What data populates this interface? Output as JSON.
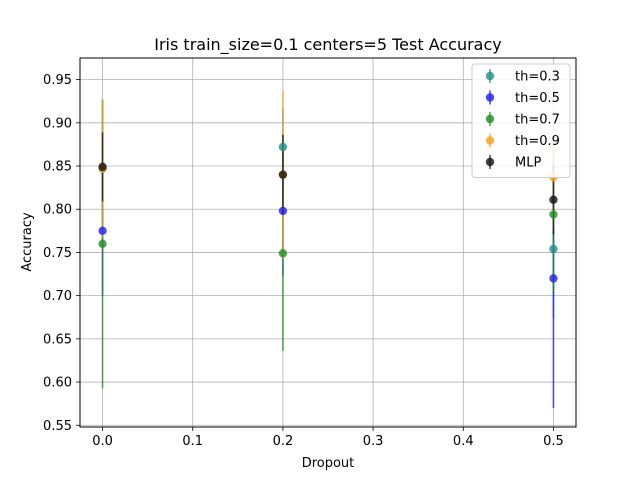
{
  "chart_data": {
    "type": "scatter",
    "title": "Iris train_size=0.1 centers=5 Test Accuracy",
    "xlabel": "Dropout",
    "ylabel": "Accuracy",
    "xlim": [
      -0.025,
      0.525
    ],
    "ylim": [
      0.548,
      0.975
    ],
    "xticks": [
      0.0,
      0.1,
      0.2,
      0.3,
      0.4,
      0.5
    ],
    "xtick_labels": [
      "0.0",
      "0.1",
      "0.2",
      "0.3",
      "0.4",
      "0.5"
    ],
    "yticks": [
      0.55,
      0.6,
      0.65,
      0.7,
      0.75,
      0.8,
      0.85,
      0.9,
      0.95
    ],
    "ytick_labels": [
      "0.55",
      "0.60",
      "0.65",
      "0.70",
      "0.75",
      "0.80",
      "0.85",
      "0.90",
      "0.95"
    ],
    "grid": true,
    "legend_position": "top-right",
    "x": [
      0.0,
      0.2,
      0.5
    ],
    "series": [
      {
        "name": "th=0.3",
        "color": "#1f8f8a",
        "values": [
          0.847,
          0.872,
          0.754
        ],
        "err": [
          0.08,
          0.045,
          0.08
        ]
      },
      {
        "name": "th=0.5",
        "color": "#1f1ff0",
        "values": [
          0.775,
          0.798,
          0.72
        ],
        "err": [
          0.075,
          0.075,
          0.15
        ]
      },
      {
        "name": "th=0.7",
        "color": "#1f8f1f",
        "values": [
          0.76,
          0.749,
          0.794
        ],
        "err": [
          0.167,
          0.113,
          0.09
        ]
      },
      {
        "name": "th=0.9",
        "color": "#f5a31f",
        "values": [
          0.847,
          0.84,
          0.837
        ],
        "err": [
          0.08,
          0.097,
          0.06
        ]
      },
      {
        "name": "MLP",
        "color": "#111111",
        "values": [
          0.849,
          0.84,
          0.811
        ],
        "err": [
          0.04,
          0.046,
          0.04
        ]
      }
    ]
  }
}
